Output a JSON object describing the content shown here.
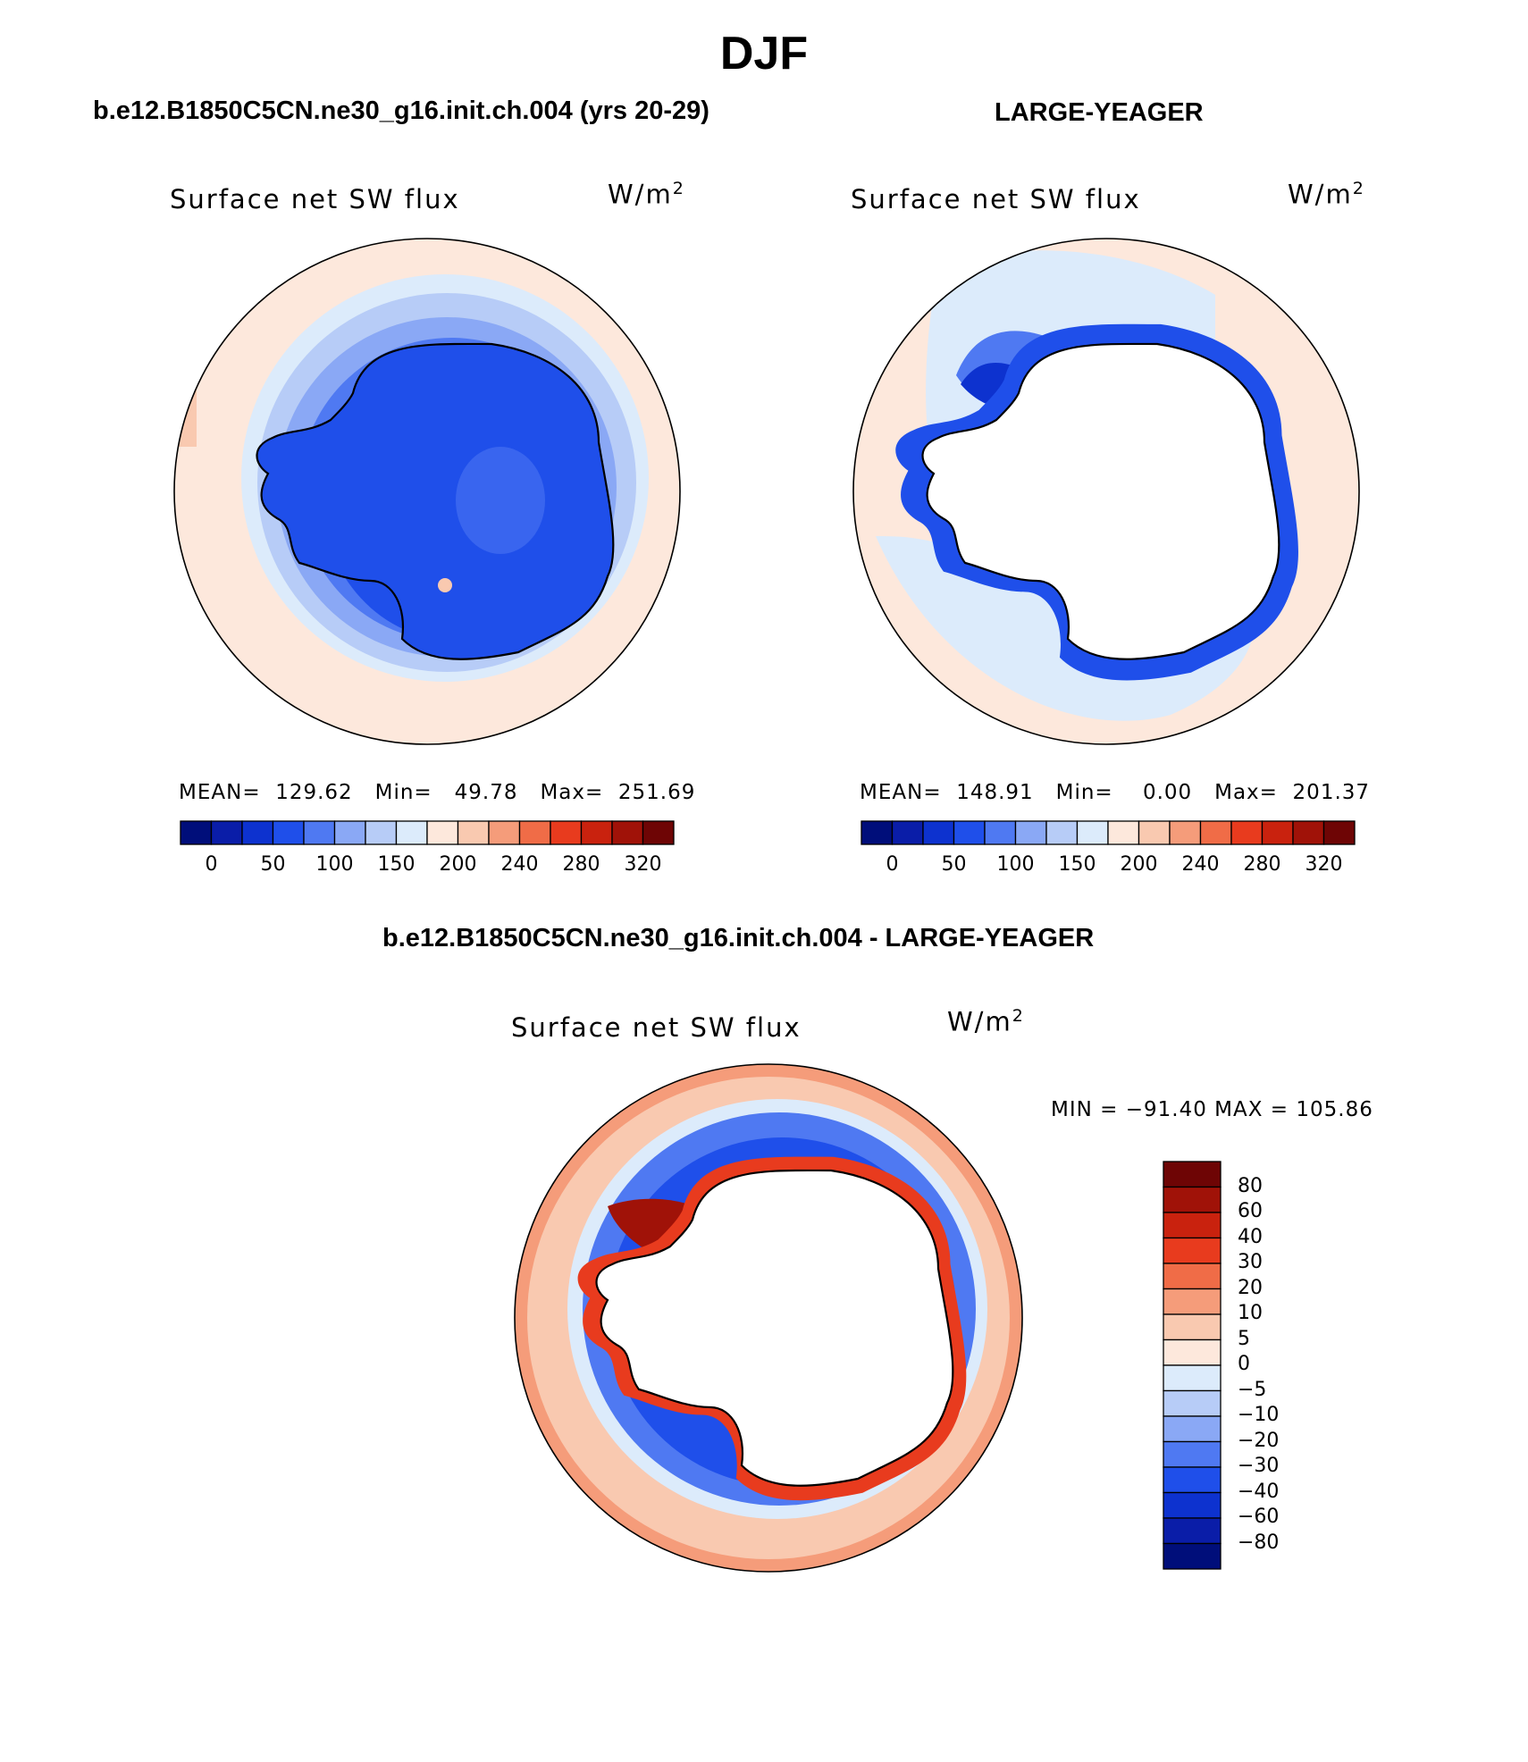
{
  "page_title": "DJF",
  "panels": [
    {
      "case": "b.e12.B1850C5CN.ne30_g16.init.ch.004 (yrs 20-29)",
      "title": "Surface net SW flux",
      "units": "W/m",
      "units_exp": "2",
      "mean": "MEAN=  129.62",
      "min": "Min=   49.78",
      "max": "Max=  251.69"
    },
    {
      "case": "LARGE-YEAGER",
      "title": "Surface net SW flux",
      "units": "W/m",
      "units_exp": "2",
      "mean": "MEAN=  148.91",
      "min": "Min=    0.00",
      "max": "Max=  201.37"
    }
  ],
  "abs_colorbar": {
    "colors": [
      "#000E7A",
      "#0A1DA8",
      "#0D32CF",
      "#1F4FEA",
      "#4F79F2",
      "#8AA8F5",
      "#B7CCF7",
      "#DCEBFB",
      "#FDE8DC",
      "#F9C9B0",
      "#F59C7A",
      "#F06C47",
      "#E83B1E",
      "#C9220E",
      "#A01208",
      "#6E0505"
    ],
    "labels": [
      "0",
      "50",
      "100",
      "150",
      "200",
      "240",
      "280",
      "320"
    ]
  },
  "diff_panel": {
    "case": "b.e12.B1850C5CN.ne30_g16.init.ch.004 - LARGE-YEAGER",
    "title": "Surface net SW flux",
    "units": "W/m",
    "units_exp": "2",
    "minmax": "MIN = −91.40 MAX = 105.86"
  },
  "diff_colorbar": {
    "colors": [
      "#000E7A",
      "#0A1DA8",
      "#0D32CF",
      "#1F4FEA",
      "#4F79F2",
      "#8AA8F5",
      "#B7CCF7",
      "#DCEBFB",
      "#FDE8DC",
      "#F9C9B0",
      "#F59C7A",
      "#F06C47",
      "#E83B1E",
      "#C9220E",
      "#A01208",
      "#6E0505"
    ],
    "labels": [
      "80",
      "60",
      "40",
      "30",
      "20",
      "10",
      "5",
      "0",
      "−5",
      "−10",
      "−20",
      "−30",
      "−40",
      "−60",
      "−80"
    ]
  }
}
